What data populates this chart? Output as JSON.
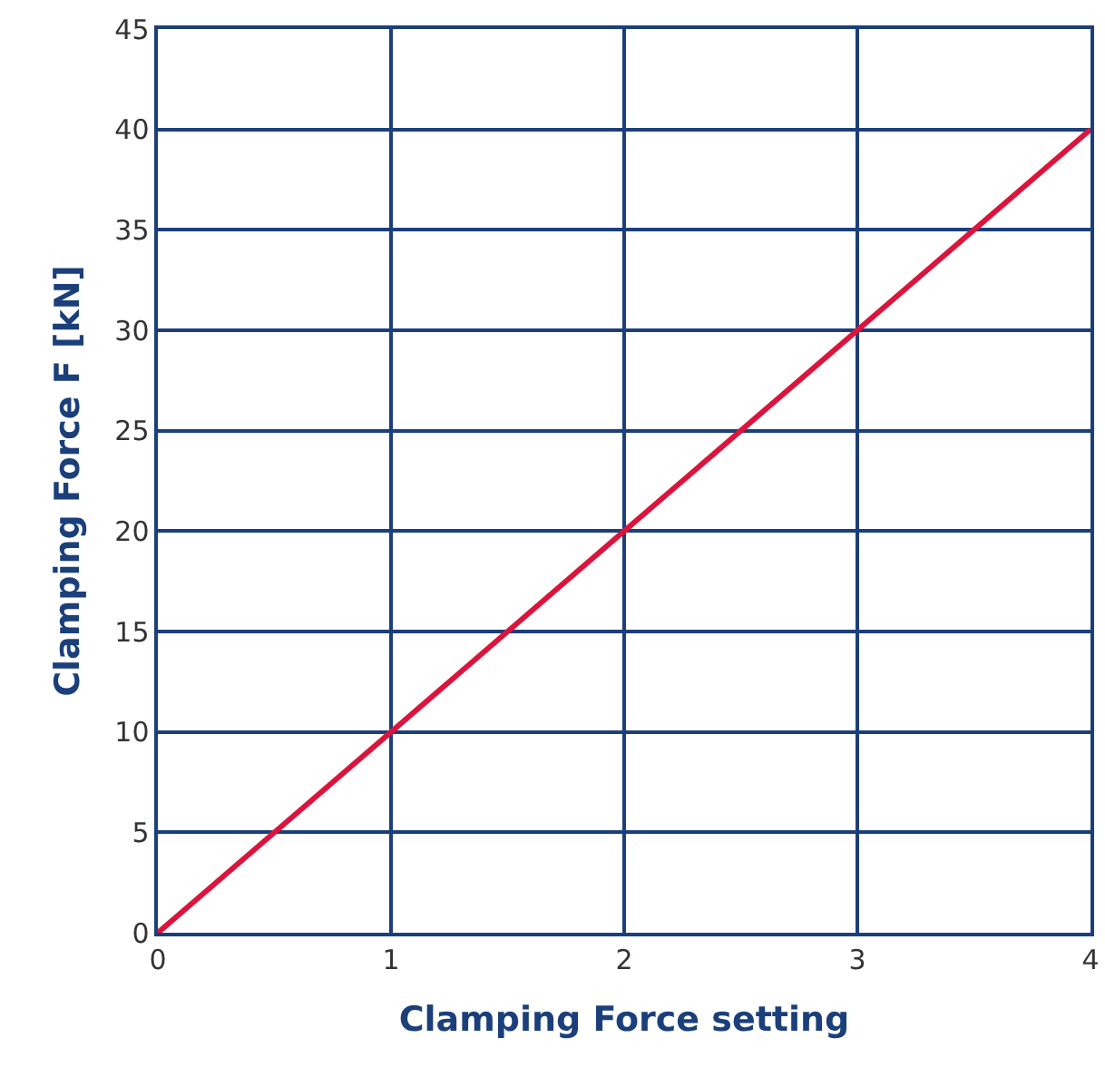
{
  "chart_data": {
    "type": "line",
    "xlabel": "Clamping Force setting",
    "ylabel": "Clamping Force F [kN]",
    "x": [
      0,
      1,
      2,
      3,
      4
    ],
    "series": [
      {
        "color": "#dc143c",
        "values": [
          0,
          10,
          20,
          30,
          40
        ]
      }
    ],
    "xlim": [
      0,
      4
    ],
    "xticks": [
      0,
      1,
      2,
      3,
      4
    ],
    "ylim": [
      0,
      45
    ],
    "yticks": [
      0,
      5,
      10,
      15,
      20,
      25,
      30,
      35,
      40,
      45
    ],
    "grid": true,
    "marker": "none",
    "line_style": "solid"
  }
}
